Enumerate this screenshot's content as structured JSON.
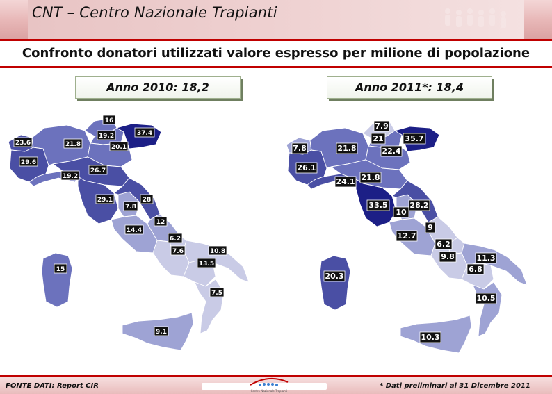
{
  "header": {
    "title": "CNT – Centro Nazionale Trapianti"
  },
  "subtitle": "Confronto donatori utilizzati valore espresso per milione di popolazione",
  "colors": {
    "header_red": "#c00000",
    "scale_lightest": "#c9cbe6",
    "scale_light": "#9ea3d4",
    "scale_mid": "#6c72bd",
    "scale_dark": "#4a4fa4",
    "scale_darkest": "#1c1f86",
    "label_bg": "#111111"
  },
  "maps": [
    {
      "title": "Anno 2010: 18,2",
      "regions": [
        {
          "name": "Valle d'Aosta",
          "value": "23.6"
        },
        {
          "name": "Piemonte",
          "value": "29.6"
        },
        {
          "name": "Lombardia",
          "value": "21.8"
        },
        {
          "name": "Trentino",
          "value": "16"
        },
        {
          "name": "Alto Adige",
          "value": "19.2"
        },
        {
          "name": "Veneto",
          "value": "20.1"
        },
        {
          "name": "Friuli Venezia Giulia",
          "value": "37.4"
        },
        {
          "name": "Liguria",
          "value": "19.2"
        },
        {
          "name": "Emilia-Romagna",
          "value": "26.7"
        },
        {
          "name": "Toscana",
          "value": "29.1"
        },
        {
          "name": "Umbria",
          "value": "7.8"
        },
        {
          "name": "Marche",
          "value": "28"
        },
        {
          "name": "Lazio",
          "value": "14.4"
        },
        {
          "name": "Abruzzo",
          "value": "12"
        },
        {
          "name": "Molise",
          "value": "6.2"
        },
        {
          "name": "Campania",
          "value": "7.6"
        },
        {
          "name": "Puglia",
          "value": "10.8"
        },
        {
          "name": "Basilicata",
          "value": "13.5"
        },
        {
          "name": "Calabria",
          "value": "7.5"
        },
        {
          "name": "Sicilia",
          "value": "9.1"
        },
        {
          "name": "Sardegna",
          "value": "15"
        }
      ]
    },
    {
      "title": "Anno 2011*: 18,4",
      "regions": [
        {
          "name": "Valle d'Aosta",
          "value": "7.8"
        },
        {
          "name": "Piemonte",
          "value": "26.1"
        },
        {
          "name": "Lombardia",
          "value": "21.8"
        },
        {
          "name": "Trentino",
          "value": "7.9"
        },
        {
          "name": "Alto Adige",
          "value": "21"
        },
        {
          "name": "Veneto",
          "value": "22.4"
        },
        {
          "name": "Friuli Venezia Giulia",
          "value": "35.7"
        },
        {
          "name": "Liguria",
          "value": "24.1"
        },
        {
          "name": "Emilia-Romagna",
          "value": "21.8"
        },
        {
          "name": "Toscana",
          "value": "33.5"
        },
        {
          "name": "Umbria",
          "value": "10"
        },
        {
          "name": "Marche",
          "value": "28.2"
        },
        {
          "name": "Abruzzo",
          "value": "9"
        },
        {
          "name": "Lazio",
          "value": "12.7"
        },
        {
          "name": "Molise",
          "value": "6.2"
        },
        {
          "name": "Campania",
          "value": "9.8"
        },
        {
          "name": "Puglia",
          "value": "11.3"
        },
        {
          "name": "Basilicata",
          "value": "6.8"
        },
        {
          "name": "Calabria",
          "value": "10.5"
        },
        {
          "name": "Sicilia",
          "value": "10.3"
        },
        {
          "name": "Sardegna",
          "value": "20.3"
        }
      ]
    }
  ],
  "footer": {
    "source": "FONTE DATI:  Report CIR",
    "note": "* Dati  preliminari al 31 Dicembre 2011",
    "logo_caption": "Centro Nazionale Trapianti"
  }
}
